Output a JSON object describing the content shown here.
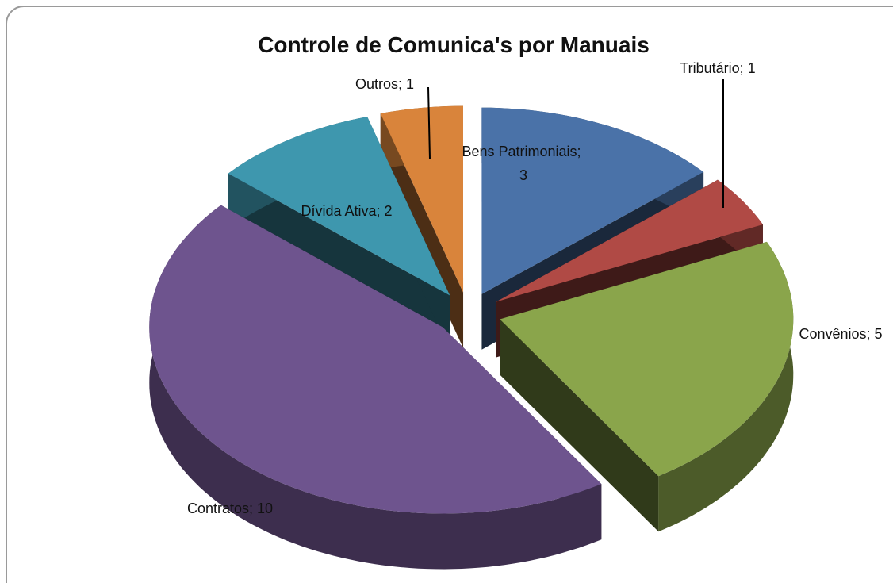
{
  "chart_data": {
    "type": "pie3d",
    "title": "Controle de Comunica's por Manuais",
    "categories": [
      "Bens Patrimoniais",
      "Tributário",
      "Convênios",
      "Contratos",
      "Dívida Ativa",
      "Outros"
    ],
    "values": [
      3,
      1,
      5,
      10,
      2,
      1
    ],
    "label_separator": "; ",
    "colors": [
      "#4a72a8",
      "#b04a45",
      "#8aa54b",
      "#6e548e",
      "#3e97ae",
      "#d9843b"
    ]
  }
}
